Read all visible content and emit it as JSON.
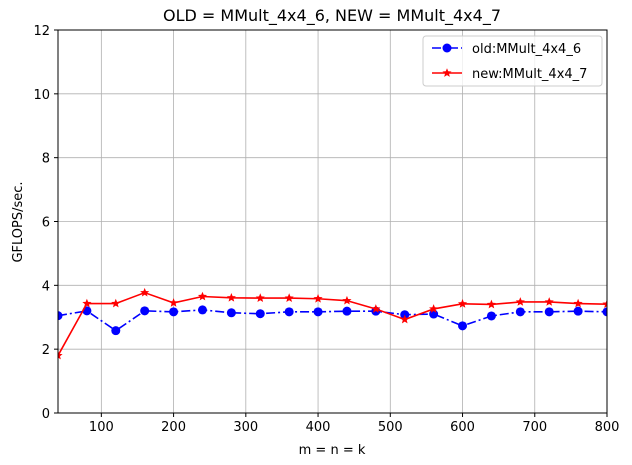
{
  "chart_data": {
    "type": "line",
    "title": "OLD = MMult_4x4_6, NEW = MMult_4x4_7",
    "xlabel": "m = n = k",
    "ylabel": "GFLOPS/sec.",
    "xlim": [
      40,
      800
    ],
    "ylim": [
      0,
      12
    ],
    "xticks": [
      100,
      200,
      300,
      400,
      500,
      600,
      700,
      800
    ],
    "yticks": [
      0,
      2,
      4,
      6,
      8,
      10,
      12
    ],
    "grid": true,
    "legend_position": "top-right",
    "x": [
      40,
      80,
      120,
      160,
      200,
      240,
      280,
      320,
      360,
      400,
      440,
      480,
      520,
      560,
      600,
      640,
      680,
      720,
      760,
      800
    ],
    "series": [
      {
        "name": "old:MMult_4x4_6",
        "color": "#0000ff",
        "linestyle": "dash-dot",
        "marker": "circle",
        "values": [
          3.05,
          3.2,
          2.58,
          3.2,
          3.17,
          3.23,
          3.14,
          3.11,
          3.17,
          3.17,
          3.19,
          3.19,
          3.08,
          3.1,
          2.73,
          3.04,
          3.17,
          3.17,
          3.19,
          3.17
        ]
      },
      {
        "name": "new:MMult_4x4_7",
        "color": "#ff0000",
        "linestyle": "solid",
        "marker": "star",
        "values": [
          1.8,
          3.43,
          3.43,
          3.77,
          3.45,
          3.65,
          3.61,
          3.6,
          3.6,
          3.58,
          3.52,
          3.26,
          2.93,
          3.26,
          3.42,
          3.4,
          3.48,
          3.48,
          3.43,
          3.41
        ]
      }
    ]
  }
}
